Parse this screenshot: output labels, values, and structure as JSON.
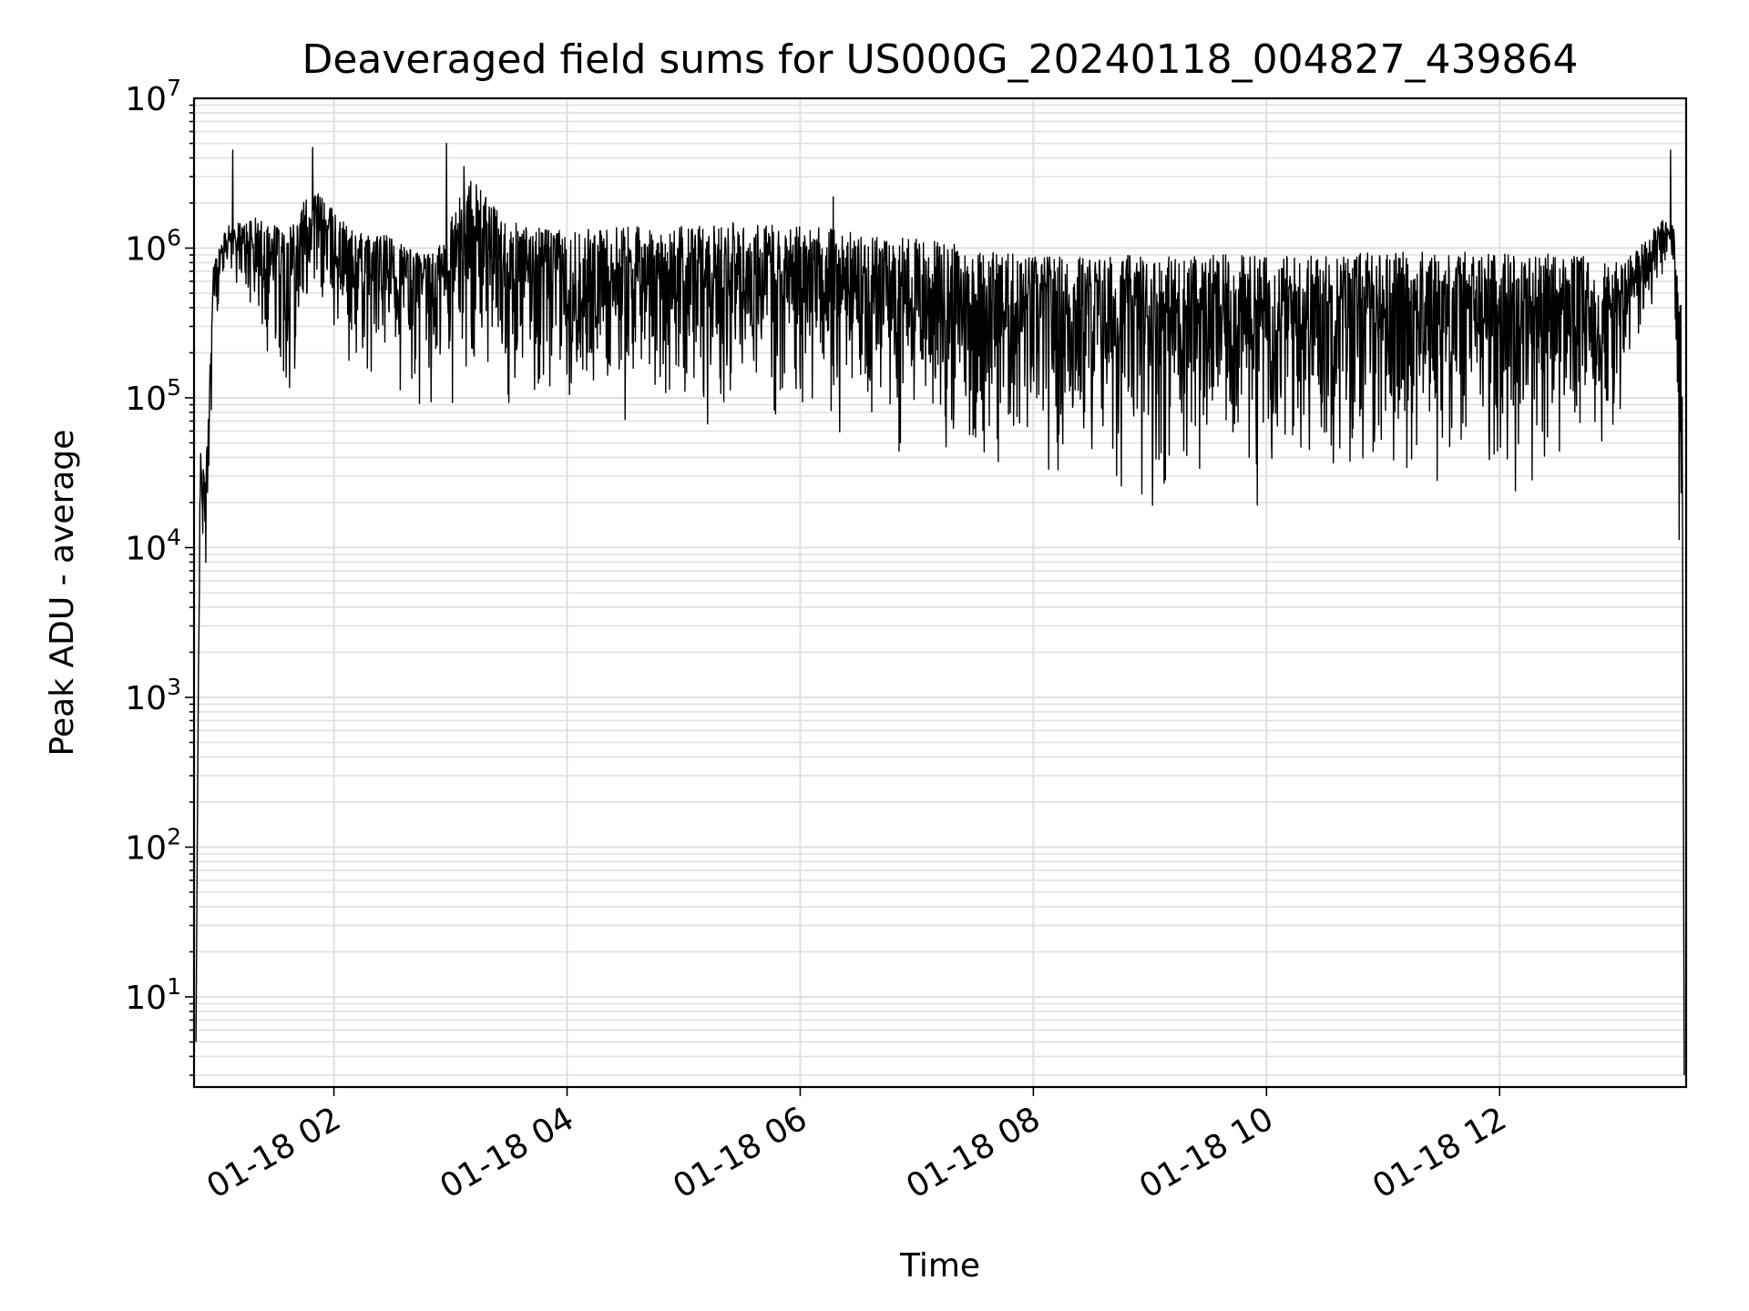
{
  "chart_data": {
    "type": "line",
    "title": "Deaveraged field sums for US000G_20240118_004827_439864",
    "xlabel": "Time",
    "ylabel": "Peak ADU - average",
    "yscale": "log",
    "ylim": [
      2.5,
      10000000
    ],
    "xlim": [
      "2024-01-18 00:48",
      "2024-01-18 13:36"
    ],
    "grid": true,
    "line_color": "#000000",
    "grid_color": "#e0e0e0",
    "x_ticks": [
      {
        "value": "2024-01-18 02:00",
        "label": "01-18 02"
      },
      {
        "value": "2024-01-18 04:00",
        "label": "01-18 04"
      },
      {
        "value": "2024-01-18 06:00",
        "label": "01-18 06"
      },
      {
        "value": "2024-01-18 08:00",
        "label": "01-18 08"
      },
      {
        "value": "2024-01-18 10:00",
        "label": "01-18 10"
      },
      {
        "value": "2024-01-18 12:00",
        "label": "01-18 12"
      }
    ],
    "y_ticks": [
      {
        "value": 10,
        "base": "10",
        "exp": "1"
      },
      {
        "value": 100,
        "base": "10",
        "exp": "2"
      },
      {
        "value": 1000,
        "base": "10",
        "exp": "3"
      },
      {
        "value": 10000,
        "base": "10",
        "exp": "4"
      },
      {
        "value": 100000,
        "base": "10",
        "exp": "5"
      },
      {
        "value": 1000000,
        "base": "10",
        "exp": "6"
      },
      {
        "value": 10000000,
        "base": "10",
        "exp": "7"
      }
    ],
    "series": [
      {
        "envelope": [
          {
            "x": "2024-01-18 00:49",
            "low": 5,
            "high": 5
          },
          {
            "x": "2024-01-18 00:51",
            "low": 7000,
            "high": 45000
          },
          {
            "x": "2024-01-18 00:54",
            "low": 3700,
            "high": 30000
          },
          {
            "x": "2024-01-18 00:58",
            "low": 200000,
            "high": 800000
          },
          {
            "x": "2024-01-18 01:05",
            "low": 700000,
            "high": 1400000
          },
          {
            "x": "2024-01-18 01:20",
            "low": 200000,
            "high": 1600000
          },
          {
            "x": "2024-01-18 01:35",
            "low": 60000,
            "high": 1500000
          },
          {
            "x": "2024-01-18 01:50",
            "low": 300000,
            "high": 2500000
          },
          {
            "x": "2024-01-18 02:10",
            "low": 80000,
            "high": 1300000
          },
          {
            "x": "2024-01-18 02:30",
            "low": 100000,
            "high": 1200000
          },
          {
            "x": "2024-01-18 02:50",
            "low": 40000,
            "high": 900000
          },
          {
            "x": "2024-01-18 03:10",
            "low": 70000,
            "high": 3000000
          },
          {
            "x": "2024-01-18 03:30",
            "low": 60000,
            "high": 1500000
          },
          {
            "x": "2024-01-18 04:00",
            "low": 50000,
            "high": 1300000
          },
          {
            "x": "2024-01-18 04:30",
            "low": 50000,
            "high": 1400000
          },
          {
            "x": "2024-01-18 05:00",
            "low": 40000,
            "high": 1400000
          },
          {
            "x": "2024-01-18 05:30",
            "low": 50000,
            "high": 1500000
          },
          {
            "x": "2024-01-18 06:00",
            "low": 40000,
            "high": 1400000
          },
          {
            "x": "2024-01-18 06:30",
            "low": 30000,
            "high": 1300000
          },
          {
            "x": "2024-01-18 07:00",
            "low": 25000,
            "high": 1200000
          },
          {
            "x": "2024-01-18 07:30",
            "low": 18000,
            "high": 1000000
          },
          {
            "x": "2024-01-18 08:00",
            "low": 15000,
            "high": 900000
          },
          {
            "x": "2024-01-18 09:00",
            "low": 14000,
            "high": 900000
          },
          {
            "x": "2024-01-18 10:00",
            "low": 15000,
            "high": 900000
          },
          {
            "x": "2024-01-18 11:00",
            "low": 16000,
            "high": 950000
          },
          {
            "x": "2024-01-18 12:00",
            "low": 16000,
            "high": 950000
          },
          {
            "x": "2024-01-18 12:40",
            "low": 18000,
            "high": 900000
          },
          {
            "x": "2024-01-18 13:00",
            "low": 20000,
            "high": 800000
          },
          {
            "x": "2024-01-18 13:10",
            "low": 100000,
            "high": 1000000
          },
          {
            "x": "2024-01-18 13:25",
            "low": 500000,
            "high": 1600000
          },
          {
            "x": "2024-01-18 13:30",
            "low": 400000,
            "high": 1400000
          },
          {
            "x": "2024-01-18 13:34",
            "low": 5,
            "high": 400000
          }
        ],
        "spikes": [
          {
            "x": "2024-01-18 01:08",
            "value": 4500000
          },
          {
            "x": "2024-01-18 01:49",
            "value": 4700000
          },
          {
            "x": "2024-01-18 02:58",
            "value": 5000000
          },
          {
            "x": "2024-01-18 03:07",
            "value": 3500000
          },
          {
            "x": "2024-01-18 06:17",
            "value": 2200000
          },
          {
            "x": "2024-01-18 13:28",
            "value": 4500000
          }
        ]
      }
    ]
  }
}
